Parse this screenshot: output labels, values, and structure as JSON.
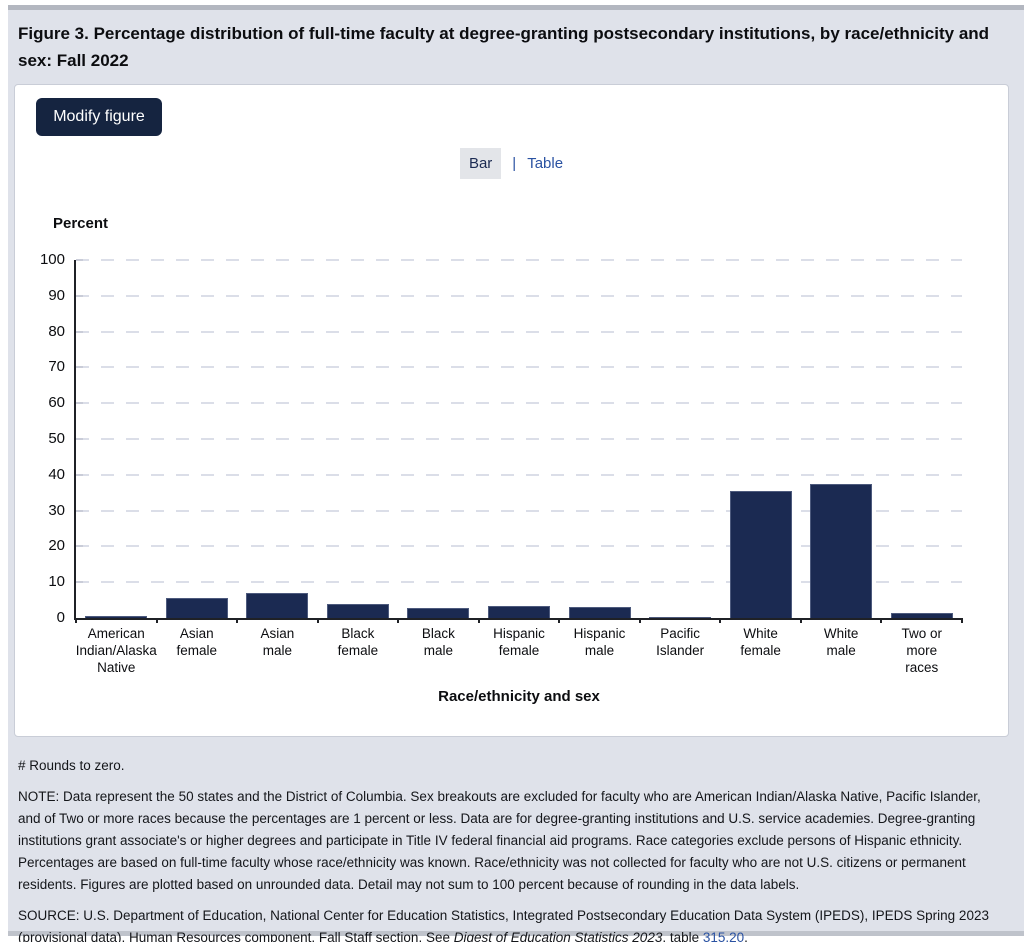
{
  "page": {
    "title": "Figure 3. Percentage distribution of full-time faculty at degree-granting postsecondary institutions, by race/ethnicity and sex: Fall 2022"
  },
  "toolbar": {
    "modify_label": "Modify figure"
  },
  "view_toggle": {
    "bar_label": "Bar",
    "separator": "|",
    "table_label": "Table"
  },
  "chart_data": {
    "type": "bar",
    "title": "Percentage distribution of full-time faculty at degree-granting postsecondary institutions, by race/ethnicity and sex: Fall 2022",
    "ylabel": "Percent",
    "xlabel": "Race/ethnicity and sex",
    "ylim": [
      0,
      100
    ],
    "ytick_step": 10,
    "grid": "dashed-horizontal",
    "legend": "none",
    "bar_color": "#1b2a52",
    "categories": [
      "American Indian/Alaska Native",
      "Asian female",
      "Asian male",
      "Black female",
      "Black male",
      "Hispanic female",
      "Hispanic male",
      "Pacific Islander",
      "White female",
      "White male",
      "Two or more races"
    ],
    "category_line_breaks": [
      [
        "American",
        "Indian/Alaska",
        "Native"
      ],
      [
        "Asian",
        "female"
      ],
      [
        "Asian",
        "male"
      ],
      [
        "Black",
        "female"
      ],
      [
        "Black",
        "male"
      ],
      [
        "Hispanic",
        "female"
      ],
      [
        "Hispanic",
        "male"
      ],
      [
        "Pacific",
        "Islander"
      ],
      [
        "White",
        "female"
      ],
      [
        "White",
        "male"
      ],
      [
        "Two or",
        "more",
        "races"
      ]
    ],
    "values": [
      0.5,
      5.7,
      7.1,
      3.9,
      2.8,
      3.4,
      3.1,
      0.2,
      35.4,
      37.5,
      1.4
    ]
  },
  "footnotes": {
    "rounds_to_zero": "# Rounds to zero.",
    "note": "NOTE: Data represent the 50 states and the District of Columbia. Sex breakouts are excluded for faculty who are American Indian/Alaska Native, Pacific Islander, and of Two or more races because the percentages are 1 percent or less. Data are for degree-granting institutions and U.S. service academies. Degree-granting institutions grant associate's or higher degrees and participate in Title IV federal financial aid programs. Race categories exclude persons of Hispanic ethnicity. Percentages are based on full-time faculty whose race/ethnicity was known. Race/ethnicity was not collected for faculty who are not U.S. citizens or permanent residents. Figures are plotted based on unrounded data. Detail may not sum to 100 percent because of rounding in the data labels.",
    "source_prefix": "SOURCE: U.S. Department of Education, National Center for Education Statistics, Integrated Postsecondary Education Data System (IPEDS), IPEDS Spring 2023 (provisional data), Human Resources component, Fall Staff section. See ",
    "source_italic": "Digest of Education Statistics 2023",
    "source_mid": ", table ",
    "source_link": "315.20",
    "source_suffix": "."
  },
  "colors": {
    "bar_navy": "#1b2a52",
    "button_navy": "#152440",
    "link_blue": "#2a52a2",
    "page_background": "#dfe2ea",
    "active_tab_background": "#e3e5e9",
    "gridline": "#dbdee8",
    "axis": "#1f2126"
  }
}
